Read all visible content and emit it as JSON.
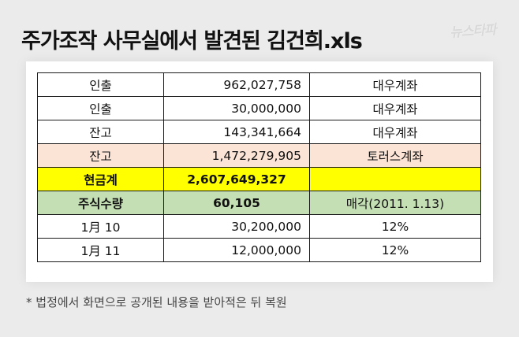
{
  "header": {
    "title": "주가조작 사무실에서 발견된 김건희.xls",
    "logo": "뉴스타파"
  },
  "colors": {
    "background": "#ebebeb",
    "peach_row": "#fbe3d6",
    "yellow_row": "#ffff00",
    "green_row": "#c5dfb4"
  },
  "table": {
    "rows": [
      {
        "label": "인출",
        "amount": "962,027,758",
        "note": "대우계좌",
        "style": "plain"
      },
      {
        "label": "인출",
        "amount": "30,000,000",
        "note": "대우계좌",
        "style": "plain"
      },
      {
        "label": "잔고",
        "amount": "143,341,664",
        "note": "대우계좌",
        "style": "plain"
      },
      {
        "label": "잔고",
        "amount": "1,472,279,905",
        "note": "토러스계좌",
        "style": "peach"
      },
      {
        "label": "현금계",
        "amount": "2,607,649,327",
        "note": "",
        "style": "yellow"
      },
      {
        "label": "주식수량",
        "amount": "60,105",
        "note": "매각(2011. 1.13)",
        "style": "green"
      },
      {
        "label": "1月  10",
        "amount": "30,200,000",
        "note": "12%",
        "style": "plain"
      },
      {
        "label": "1月  11",
        "amount": "12,000,000",
        "note": "12%",
        "style": "plain"
      }
    ]
  },
  "footnote": "* 법정에서 화면으로 공개된 내용을 받아적은 뒤 복원"
}
